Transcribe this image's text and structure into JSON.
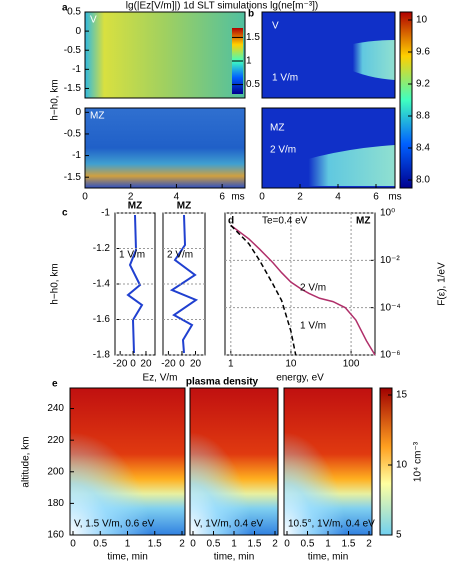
{
  "title": "lg(|Ez[V/m]|) 1d SLT simulations lg(ne[m⁻³])",
  "a": {
    "letter": "a",
    "ylabel": "h−h0, km",
    "xlim": [
      0,
      7
    ],
    "xticks": [
      0,
      2,
      4,
      6
    ],
    "xunit": "ms",
    "top": {
      "label": "V",
      "ylim": [
        -1.75,
        0.5
      ],
      "yticks": [
        0.5,
        0,
        -0.5,
        -1,
        -1.5
      ]
    },
    "bottom": {
      "label": "MZ",
      "ylim": [
        -1.75,
        0.1
      ],
      "yticks": [
        0,
        -0.5,
        -1,
        -1.5
      ]
    },
    "colorbar": {
      "lim": [
        0.3,
        1.7
      ],
      "ticks": [
        1.5,
        1,
        0.5
      ]
    }
  },
  "b": {
    "letter": "b",
    "xlim": [
      0,
      7
    ],
    "xticks": [
      0,
      2,
      4,
      6
    ],
    "xunit": "ms",
    "top": {
      "label": "V",
      "field": "1 V/m"
    },
    "bottom": {
      "label": "MZ",
      "field": "2 V/m"
    },
    "colorbar": {
      "lim": [
        7.9,
        10.1
      ],
      "ticks": [
        10,
        9.6,
        9.2,
        8.8,
        8.4,
        {
          "value": 8,
          "label": "8.0"
        }
      ]
    }
  },
  "c": {
    "letter": "c",
    "ylabel": "h−h0, km",
    "xlabel": "Ez, V/m",
    "ylim": [
      -1.8,
      -1
    ],
    "yticks": [
      -1,
      -1.2,
      -1.4,
      -1.6,
      -1.8
    ],
    "xlim": [
      -28,
      34
    ],
    "xticks": [
      -20,
      0,
      20
    ],
    "panels": [
      {
        "title": "MZ",
        "field": "1 V/m"
      },
      {
        "title": "MZ",
        "field": "2 V/m"
      }
    ]
  },
  "d": {
    "letter": "d",
    "type": "line",
    "log": true,
    "annotation": "Te=0.4 eV",
    "tag": "MZ",
    "xlabel": "energy, eV",
    "ylabel": "F(ε), 1/eV",
    "xlim": [
      0.8,
      250
    ],
    "xticks": [
      1,
      10,
      100
    ],
    "ylim": [
      1e-06,
      1
    ],
    "yticks": [
      {
        "value": 1,
        "label": "10⁰"
      },
      {
        "value": 0.01,
        "label": "10⁻²"
      },
      {
        "value": 0.0001,
        "label": "10⁻⁴"
      },
      {
        "value": 1e-06,
        "label": "10⁻⁶"
      }
    ],
    "series": [
      {
        "name": "2 V/m",
        "color": "#b0306a",
        "x": [
          1,
          2,
          3,
          5,
          7,
          10,
          15,
          20,
          30,
          50,
          80,
          120,
          180,
          250
        ],
        "values": [
          0.3,
          0.08,
          0.03,
          0.008,
          0.003,
          0.0012,
          0.0006,
          0.0004,
          0.00025,
          0.00018,
          0.0001,
          3e-05,
          4e-06,
          1e-06
        ]
      },
      {
        "name": "1 V/m",
        "color": "#000000",
        "x": [
          1,
          2,
          3,
          5,
          7,
          10,
          12
        ],
        "values": [
          0.3,
          0.05,
          0.01,
          0.001,
          0.0002,
          1e-05,
          1e-06
        ]
      }
    ]
  },
  "e": {
    "letter": "e",
    "title": "plasma density",
    "ylabel": "altitude, km",
    "xlabel": "time, min",
    "ylim": [
      160,
      253
    ],
    "yticks": [
      160,
      180,
      200,
      220,
      240
    ],
    "xlim": [
      0,
      2
    ],
    "xticks": [
      0,
      0.5,
      1,
      1.5,
      2
    ],
    "panels": [
      "V, 1.5 V/m, 0.6 eV",
      "V, 1V/m, 0.4 eV",
      "10.5°, 1V/m, 0.4 eV"
    ],
    "colorbar": {
      "lim": [
        5,
        15.5
      ],
      "ticks": [
        5,
        10,
        15
      ],
      "label": "10⁴ cm⁻³"
    }
  }
}
